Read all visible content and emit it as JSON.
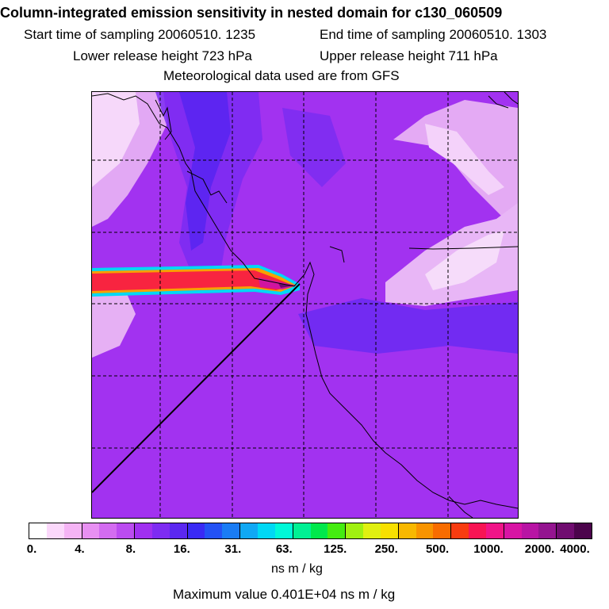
{
  "title": "Column-integrated emission sensitivity in nested domain for c130_060509",
  "start_time": "Start time of sampling 20060510.  1235",
  "end_time": "End time of sampling 20060510.  1303",
  "lower_height": "Lower release height  723 hPa",
  "upper_height": "Upper release height  711 hPa",
  "met_data": "Meteorological data used are from GFS",
  "colorbar": {
    "colors": [
      "#ffffff",
      "#fbd8fb",
      "#f5b4f5",
      "#e890f2",
      "#d36cf0",
      "#bb4cf0",
      "#a030f0",
      "#7e2cf2",
      "#5b28f0",
      "#3a2af4",
      "#2452f4",
      "#1a7cf4",
      "#10a8f4",
      "#00d8f4",
      "#00f8d8",
      "#00f094",
      "#00e84c",
      "#44ec10",
      "#a0f010",
      "#e0f010",
      "#f8e000",
      "#f8b800",
      "#f89400",
      "#f86c00",
      "#f83c10",
      "#f81454",
      "#f01488",
      "#d814a4",
      "#b814a4",
      "#941490",
      "#700c70",
      "#4c044c"
    ],
    "ticks": [
      "0.",
      "4.",
      "8.",
      "16.",
      "31.",
      "63.",
      "125.",
      "250.",
      "500.",
      "1000.",
      "2000.",
      "4000."
    ]
  },
  "unit": "ns m / kg",
  "max_value": "Maximum value  0.401E+04 ns m / kg",
  "chart_data": {
    "type": "heatmap",
    "title": "Column-integrated emission sensitivity in nested domain for c130_060509",
    "colorbar_label": "ns m / kg",
    "colorbar_ticks": [
      0,
      4,
      8,
      16,
      31,
      63,
      125,
      250,
      500,
      1000,
      2000,
      4000
    ],
    "max_value": 4010,
    "release_heights_hPa": [
      723,
      711
    ],
    "sampling_window": [
      "20060510 1235",
      "20060510 1303"
    ]
  }
}
